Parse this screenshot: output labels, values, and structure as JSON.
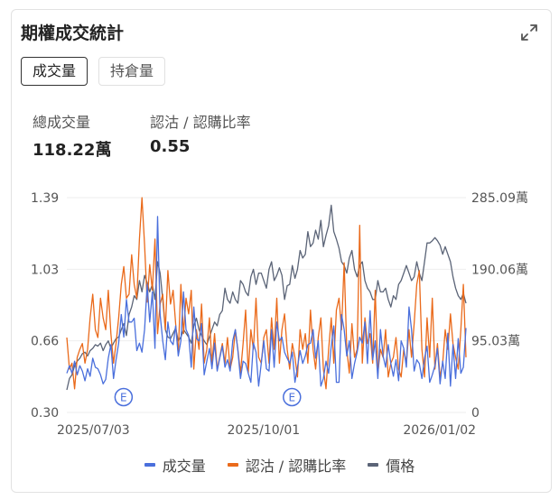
{
  "card": {
    "title": "期權成交統計",
    "tabs": [
      {
        "label": "成交量",
        "active": true
      },
      {
        "label": "持倉量",
        "active": false
      }
    ],
    "stats": [
      {
        "label": "總成交量",
        "value": "118.22萬"
      },
      {
        "label": "認沽 / 認購比率",
        "value": "0.55"
      }
    ]
  },
  "chart_data": {
    "type": "line",
    "x_ticks": [
      "2025/07/03",
      "2025/10/01",
      "2026/01/02"
    ],
    "x_range": [
      "2025/06/19",
      "2026/01/16"
    ],
    "y_left": {
      "ticks": [
        "1.39",
        "1.03",
        "0.66",
        "0.30"
      ],
      "range": [
        0.3,
        1.39
      ]
    },
    "y_right": {
      "ticks": [
        "285.09萬",
        "190.06萬",
        "95.03萬",
        "0"
      ],
      "range": [
        0,
        285.09
      ]
    },
    "grid": true,
    "legend_position": "bottom",
    "event_markers": [
      {
        "date": "2025/07/19",
        "label": "E"
      },
      {
        "date": "2025/10/16",
        "label": "E"
      }
    ],
    "series": [
      {
        "name": "成交量",
        "axis": "right",
        "color": "#4a6fdc",
        "values": [
          52,
          62,
          52,
          68,
          50,
          62,
          55,
          42,
          58,
          48,
          72,
          60,
          58,
          50,
          38,
          44,
          72,
          90,
          45,
          70,
          92,
          130,
          100,
          150,
          120,
          120,
          125,
          82,
          92,
          80,
          110,
          170,
          120,
          160,
          85,
          260,
          130,
          95,
          70,
          120,
          95,
          90,
          115,
          75,
          95,
          160,
          110,
          102,
          60,
          140,
          98,
          95,
          118,
          50,
          68,
          85,
          58,
          92,
          55,
          72,
          88,
          60,
          70,
          55,
          95,
          110,
          82,
          45,
          68,
          65,
          52,
          40,
          92,
          80,
          35,
          65,
          95,
          58,
          55,
          110,
          60,
          120,
          95,
          100,
          80,
          72,
          65,
          80,
          40,
          60,
          82,
          65,
          75,
          90,
          92,
          110,
          72,
          95,
          35,
          45,
          68,
          52,
          88,
          115,
          40,
          40,
          130,
          110,
          75,
          95,
          45,
          65,
          80,
          100,
          92,
          120,
          65,
          135,
          70,
          95,
          45,
          110,
          75,
          60,
          90,
          65,
          48,
          70,
          42,
          95,
          85,
          60,
          140,
          110,
          55,
          70,
          65,
          45,
          72,
          88,
          40,
          50,
          62,
          85,
          38,
          68,
          45,
          105,
          35,
          90,
          45,
          98,
          52,
          60,
          112
        ]
      },
      {
        "name": "認沽 / 認購比率",
        "axis": "left",
        "color": "#ea6a1b",
        "values": [
          0.68,
          0.52,
          0.55,
          0.42,
          0.58,
          0.62,
          0.65,
          0.55,
          0.62,
          0.78,
          0.9,
          0.72,
          0.68,
          0.88,
          0.78,
          0.72,
          0.92,
          0.7,
          0.55,
          0.65,
          0.78,
          0.95,
          1.04,
          0.88,
          0.9,
          1.1,
          0.95,
          0.88,
          1.18,
          1.39,
          1.15,
          0.86,
          1.05,
          0.92,
          1.18,
          0.7,
          0.85,
          0.9,
          0.72,
          1.02,
          0.85,
          0.92,
          0.75,
          0.6,
          0.95,
          0.7,
          0.88,
          0.8,
          0.92,
          0.52,
          0.72,
          0.62,
          0.85,
          0.55,
          0.62,
          0.78,
          0.55,
          0.7,
          0.52,
          0.58,
          0.65,
          0.55,
          0.68,
          0.52,
          0.58,
          0.72,
          0.62,
          0.5,
          0.65,
          0.82,
          0.5,
          0.72,
          0.62,
          0.88,
          0.58,
          0.55,
          0.68,
          0.72,
          0.55,
          0.78,
          0.62,
          0.88,
          0.55,
          0.72,
          0.8,
          0.62,
          0.52,
          0.65,
          0.58,
          0.48,
          0.72,
          0.62,
          0.7,
          0.55,
          0.82,
          0.62,
          0.52,
          0.68,
          0.78,
          0.52,
          0.42,
          0.62,
          0.78,
          0.55,
          0.82,
          0.88,
          0.72,
          1.06,
          0.62,
          0.5,
          0.75,
          0.58,
          0.62,
          1.25,
          0.55,
          0.78,
          0.65,
          0.7,
          0.55,
          0.92,
          0.5,
          0.62,
          0.58,
          0.72,
          0.48,
          0.55,
          0.58,
          0.68,
          0.52,
          0.48,
          0.62,
          0.55,
          0.72,
          0.58,
          0.75,
          0.95,
          1.02,
          0.62,
          0.48,
          0.78,
          0.58,
          0.88,
          0.52,
          0.65,
          0.48,
          0.55,
          0.72,
          0.62,
          0.8,
          0.65,
          0.58,
          0.52,
          0.72,
          0.95,
          0.58
        ]
      },
      {
        "name": "價格",
        "axis": "right",
        "color": "#5b6477",
        "values": [
          30,
          45,
          50,
          62,
          68,
          72,
          78,
          80,
          75,
          82,
          85,
          90,
          88,
          92,
          82,
          90,
          95,
          85,
          92,
          98,
          100,
          110,
          118,
          102,
          130,
          140,
          155,
          150,
          175,
          160,
          182,
          172,
          160,
          170,
          150,
          200,
          185,
          150,
          110,
          100,
          98,
          105,
          112,
          95,
          100,
          110,
          105,
          100,
          92,
          115,
          125,
          110,
          102,
          95,
          90,
          100,
          110,
          120,
          115,
          130,
          135,
          165,
          150,
          145,
          160,
          150,
          145,
          175,
          170,
          160,
          155,
          180,
          190,
          170,
          185,
          185,
          175,
          165,
          190,
          200,
          175,
          182,
          192,
          182,
          150,
          168,
          170,
          195,
          178,
          190,
          215,
          205,
          210,
          240,
          220,
          225,
          242,
          230,
          255,
          220,
          235,
          248,
          275,
          240,
          230,
          218,
          200,
          195,
          185,
          205,
          215,
          190,
          180,
          195,
          200,
          175,
          165,
          160,
          150,
          150,
          175,
          160,
          160,
          165,
          150,
          140,
          155,
          150,
          170,
          175,
          185,
          195,
          185,
          175,
          180,
          200,
          185,
          175,
          200,
          225,
          225,
          228,
          232,
          228,
          222,
          210,
          220,
          210,
          200,
          180,
          165,
          155,
          150,
          158,
          145
        ]
      }
    ]
  }
}
